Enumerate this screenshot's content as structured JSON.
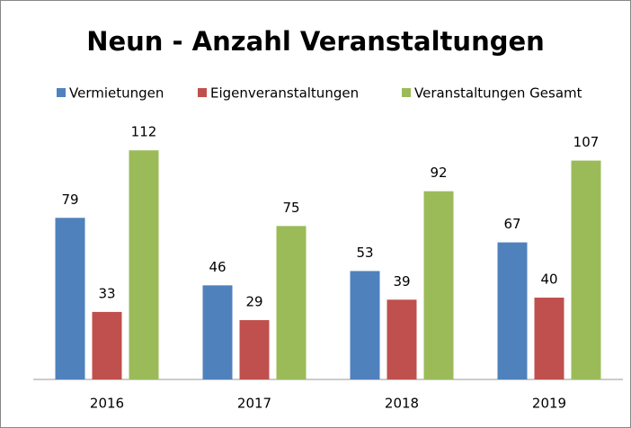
{
  "chart_data": {
    "type": "bar",
    "title": "Neun - Anzahl Veranstaltungen",
    "categories": [
      "2016",
      "2017",
      "2018",
      "2019"
    ],
    "series": [
      {
        "name": "Vermietungen",
        "color": "#4f81bd",
        "values": [
          79,
          46,
          53,
          67
        ]
      },
      {
        "name": "Eigenveranstaltungen",
        "color": "#c0504d",
        "values": [
          33,
          29,
          39,
          40
        ]
      },
      {
        "name": "Veranstaltungen Gesamt",
        "color": "#9bbb59",
        "values": [
          112,
          75,
          92,
          107
        ]
      }
    ],
    "ylim": [
      0,
      120
    ],
    "legend": "top"
  }
}
